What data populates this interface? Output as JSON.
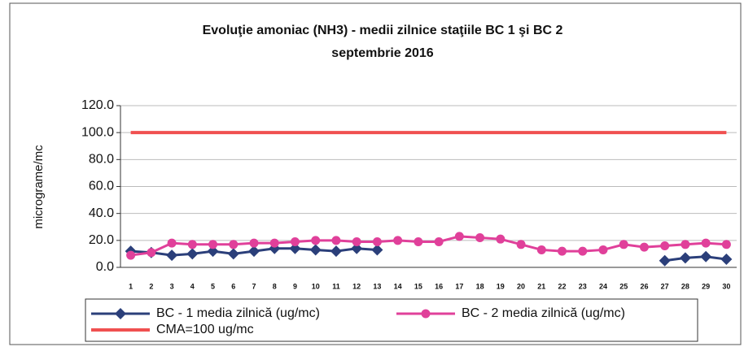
{
  "chart_data": {
    "type": "line",
    "title": "Evoluţie amoniac (NH3) - medii zilnice staţiile BC 1 şi BC 2",
    "subtitle": "septembrie 2016",
    "y_label": "micrograme/mc",
    "categories": [
      "1",
      "2",
      "3",
      "4",
      "5",
      "6",
      "7",
      "8",
      "9",
      "10",
      "11",
      "12",
      "13",
      "14",
      "15",
      "16",
      "17",
      "18",
      "19",
      "20",
      "21",
      "22",
      "23",
      "24",
      "25",
      "26",
      "27",
      "28",
      "29",
      "30"
    ],
    "series": [
      {
        "name": "BC - 1 media zilnică (ug/mc)",
        "color": "#2b3f7a",
        "marker": "diamond",
        "values": [
          12,
          11,
          9,
          10,
          12,
          10,
          12,
          14,
          14,
          13,
          12,
          14,
          13,
          null,
          null,
          null,
          null,
          null,
          null,
          null,
          null,
          null,
          null,
          null,
          null,
          null,
          5,
          7,
          8,
          6
        ]
      },
      {
        "name": "BC - 2 media zilnică (ug/mc)",
        "color": "#e0409a",
        "marker": "circle",
        "values": [
          9,
          11,
          18,
          17,
          17,
          17,
          18,
          18,
          19,
          20,
          20,
          19,
          19,
          20,
          19,
          19,
          23,
          22,
          21,
          17,
          13,
          12,
          12,
          13,
          17,
          15,
          16,
          17,
          18,
          17
        ]
      },
      {
        "name": "CMA=100 ug/mc",
        "color": "#f05050",
        "marker": "none",
        "values": [
          100,
          100,
          100,
          100,
          100,
          100,
          100,
          100,
          100,
          100,
          100,
          100,
          100,
          100,
          100,
          100,
          100,
          100,
          100,
          100,
          100,
          100,
          100,
          100,
          100,
          100,
          100,
          100,
          100,
          100
        ]
      }
    ],
    "ylim": [
      0,
      120
    ],
    "yticks": [
      {
        "value": 0,
        "label": "0.0"
      },
      {
        "value": 20,
        "label": "20.0"
      },
      {
        "value": 40,
        "label": "40.0"
      },
      {
        "value": 60,
        "label": "60.0"
      },
      {
        "value": 80,
        "label": "80.0"
      },
      {
        "value": 100,
        "label": "100.0"
      },
      {
        "value": 120,
        "label": "120.0"
      }
    ],
    "grid": true
  }
}
